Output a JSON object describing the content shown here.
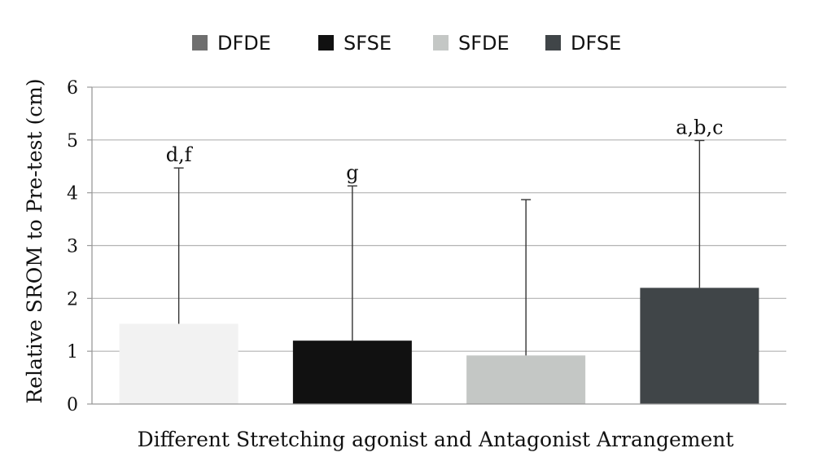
{
  "chart_data": {
    "type": "bar",
    "title": "",
    "xlabel": "Different Stretching agonist and Antagonist Arrangement",
    "ylabel": "Relative SROM to Pre-test (cm)",
    "ylim": [
      0,
      6
    ],
    "yticks": [
      0,
      1,
      2,
      3,
      4,
      5,
      6
    ],
    "grid": true,
    "legend_position": "top",
    "legend": [
      {
        "label": "DFDE",
        "color": "#6f6f6f"
      },
      {
        "label": "SFSE",
        "color": "#111111"
      },
      {
        "label": "SFDE",
        "color": "#c4c7c5"
      },
      {
        "label": "DFSE",
        "color": "#404548"
      }
    ],
    "series": [
      {
        "name": "DFDE",
        "value": 1.52,
        "error_upper": 4.47,
        "color": "#f2f2f2",
        "annotation": "d,f"
      },
      {
        "name": "SFSE",
        "value": 1.2,
        "error_upper": 4.13,
        "color": "#111111",
        "annotation": "g"
      },
      {
        "name": "SFDE",
        "value": 0.92,
        "error_upper": 3.87,
        "color": "#c4c7c5",
        "annotation": ""
      },
      {
        "name": "DFSE",
        "value": 2.2,
        "error_upper": 4.99,
        "color": "#404548",
        "annotation": "a,b,c"
      }
    ]
  }
}
